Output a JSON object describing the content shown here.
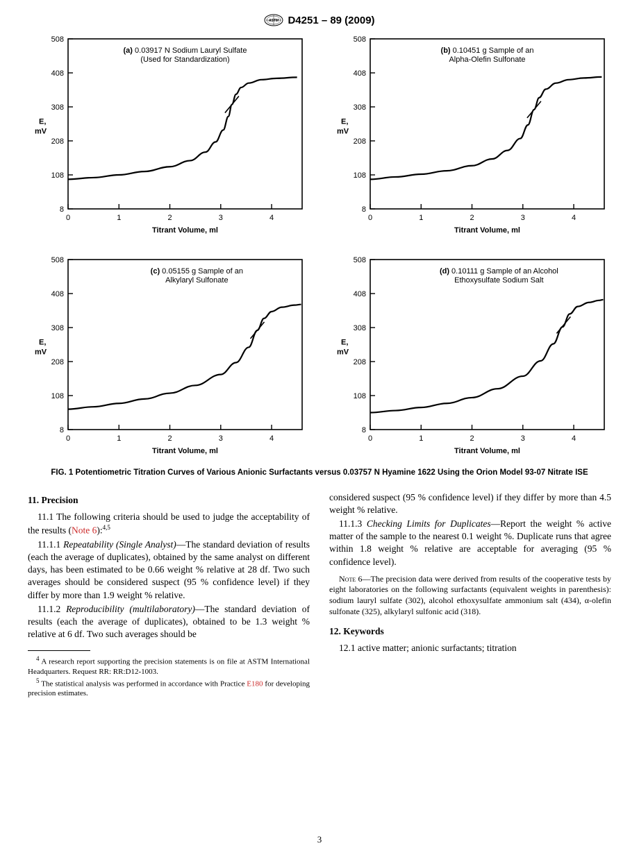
{
  "header": {
    "designation": "D4251 – 89 (2009)"
  },
  "charts_common": {
    "ylabel": "E,\nmV",
    "xlabel": "Titrant Volume, ml",
    "xlim": [
      0,
      4.6
    ],
    "ylim": [
      8,
      508
    ],
    "xticks": [
      0,
      1,
      2,
      3,
      4
    ],
    "yticks": [
      8,
      108,
      208,
      308,
      408,
      508
    ],
    "line_color": "#000000",
    "line_width": 2.2,
    "axis_color": "#000000",
    "tick_fontsize": 11,
    "label_fontsize": 11,
    "label_fontweight": "bold",
    "background_color": "#ffffff",
    "inflection_mark": true
  },
  "charts": [
    {
      "id": "a",
      "label_bold": "(a)",
      "label_rest": " 0.03917 N Sodium Lauryl Sulfate\n(Used for Standardization)",
      "curve": [
        [
          0.0,
          95
        ],
        [
          0.5,
          100
        ],
        [
          1.0,
          108
        ],
        [
          1.5,
          118
        ],
        [
          2.0,
          132
        ],
        [
          2.4,
          150
        ],
        [
          2.7,
          175
        ],
        [
          2.9,
          205
        ],
        [
          3.05,
          240
        ],
        [
          3.15,
          280
        ],
        [
          3.22,
          315
        ],
        [
          3.3,
          345
        ],
        [
          3.4,
          365
        ],
        [
          3.55,
          378
        ],
        [
          3.8,
          388
        ],
        [
          4.1,
          392
        ],
        [
          4.5,
          395
        ]
      ],
      "inflection_x": 3.22
    },
    {
      "id": "b",
      "label_bold": "(b)",
      "label_rest": " 0.10451 g Sample of an\nAlpha-Olefin Sulfonate",
      "curve": [
        [
          0.0,
          95
        ],
        [
          0.5,
          102
        ],
        [
          1.0,
          110
        ],
        [
          1.5,
          120
        ],
        [
          2.0,
          135
        ],
        [
          2.4,
          155
        ],
        [
          2.7,
          180
        ],
        [
          2.95,
          215
        ],
        [
          3.1,
          255
        ],
        [
          3.22,
          300
        ],
        [
          3.32,
          335
        ],
        [
          3.45,
          360
        ],
        [
          3.65,
          378
        ],
        [
          3.9,
          388
        ],
        [
          4.2,
          393
        ],
        [
          4.55,
          396
        ]
      ],
      "inflection_x": 3.22
    },
    {
      "id": "c",
      "label_bold": "(c)",
      "label_rest": " 0.05155 g Sample of an\nAlkylaryl Sulfonate",
      "curve": [
        [
          0.0,
          68
        ],
        [
          0.5,
          75
        ],
        [
          1.0,
          85
        ],
        [
          1.5,
          98
        ],
        [
          2.0,
          115
        ],
        [
          2.5,
          138
        ],
        [
          3.0,
          170
        ],
        [
          3.3,
          205
        ],
        [
          3.55,
          250
        ],
        [
          3.72,
          300
        ],
        [
          3.85,
          335
        ],
        [
          4.0,
          355
        ],
        [
          4.2,
          368
        ],
        [
          4.45,
          374
        ],
        [
          4.58,
          376
        ]
      ],
      "inflection_x": 3.72
    },
    {
      "id": "d",
      "label_bold": "(d)",
      "label_rest": " 0.10111 g Sample of an Alcohol\nEthoxysulfate Sodium Salt",
      "curve": [
        [
          0.0,
          58
        ],
        [
          0.5,
          64
        ],
        [
          1.0,
          73
        ],
        [
          1.5,
          85
        ],
        [
          2.0,
          102
        ],
        [
          2.5,
          128
        ],
        [
          3.0,
          165
        ],
        [
          3.35,
          210
        ],
        [
          3.6,
          260
        ],
        [
          3.78,
          310
        ],
        [
          3.92,
          348
        ],
        [
          4.08,
          370
        ],
        [
          4.3,
          382
        ],
        [
          4.5,
          388
        ],
        [
          4.58,
          390
        ]
      ],
      "inflection_x": 3.8
    }
  ],
  "figure_caption": "FIG. 1  Potentiometric Titration Curves of Various Anionic Surfactants versus 0.03757 N Hyamine 1622 Using the Orion Model 93-07 Nitrate ISE",
  "sections": {
    "precision": {
      "head": "11. Precision",
      "p11_1_a": "11.1 The following criteria should be used to judge the acceptability of the results (",
      "note6": "Note 6",
      "p11_1_b": "):",
      "sup45": "4,5",
      "p11_1_1_lead": "11.1.1 ",
      "p11_1_1_i": "Repeatability (Single Analyst)",
      "p11_1_1_rest": "—The standard deviation of results (each the average of duplicates), obtained by the same analyst on different days, has been estimated to be 0.66 weight % relative at 28 df. Two such averages should be considered suspect (95 % confidence level) if they differ by more than 1.9 weight % relative.",
      "p11_1_2_lead": "11.1.2 ",
      "p11_1_2_i": "Reproducibility (multilaboratory)",
      "p11_1_2_rest": "—The standard deviation of results (each the average of duplicates), obtained to be 1.3 weight % relative at 6 df. Two such averages should be",
      "col2_cont": "considered suspect (95 % confidence level) if they differ by more than 4.5 weight % relative.",
      "p11_1_3_lead": "11.1.3 ",
      "p11_1_3_i": "Checking Limits for Duplicates",
      "p11_1_3_rest": "—Report the weight % active matter of the sample to the nearest 0.1 weight %. Duplicate runs that agree within 1.8 weight % relative are acceptable for averaging (95 % confidence level).",
      "note6_label": "Note",
      "note6_num": " 6—",
      "note6_text": "The precision data were derived from results of the cooperative tests by eight laboratories on the following surfactants (equivalent weights in parenthesis): sodium lauryl sulfate (302), alcohol ethoxysulfate ammonium salt (434), α-olefin sulfonate (325), alkylaryl sulfonic acid (318)."
    },
    "keywords": {
      "head": "12. Keywords",
      "p12_1": "12.1 active matter; anionic surfactants; titration"
    },
    "footnotes": {
      "f4_sup": "4",
      "f4": " A research report supporting the precision statements is on file at ASTM International Headquarters. Request RR: RR:D12-1003.",
      "f5_sup": "5",
      "f5_a": " The statistical analysis was performed in accordance with Practice ",
      "f5_link": "E180",
      "f5_b": " for developing precision estimates."
    }
  },
  "page_number": "3"
}
